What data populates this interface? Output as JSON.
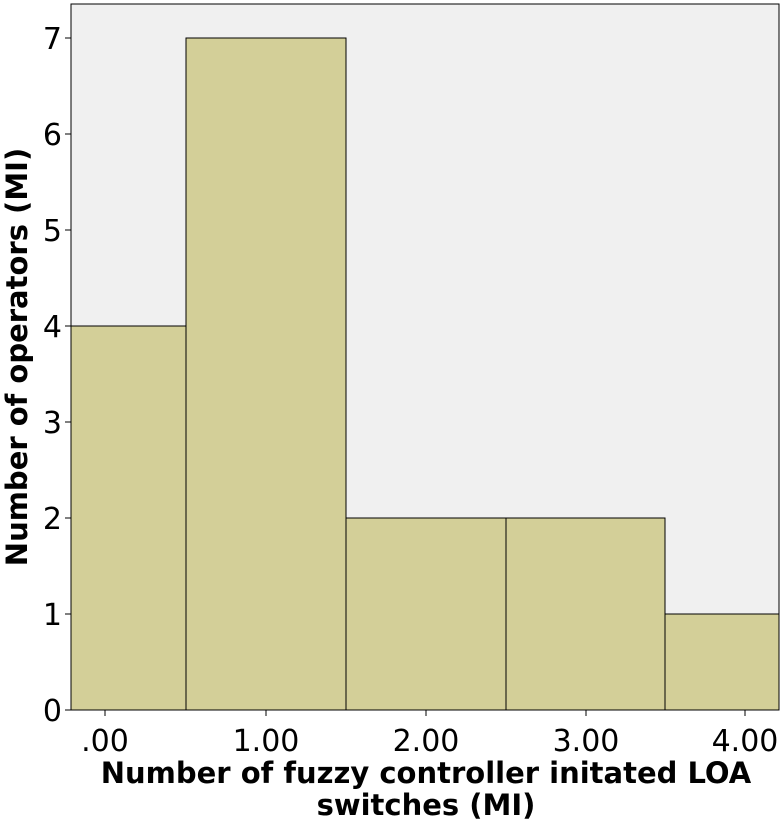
{
  "chart_data": {
    "type": "bar",
    "categories": [
      ".00",
      "1.00",
      "2.00",
      "3.00",
      "4.00"
    ],
    "values": [
      4,
      7,
      2,
      2,
      1
    ],
    "xlabel_lines": [
      "Number of fuzzy controller initated LOA",
      "switches (MI)"
    ],
    "ylabel": "Number of operators (MI)",
    "ylim": [
      0,
      7
    ],
    "yticks": [
      "0",
      "1",
      "2",
      "3",
      "4",
      "5",
      "6",
      "7"
    ],
    "grid": false,
    "colors": {
      "bar": "#d3cf98",
      "bar_edge": "#000000",
      "plot_background": "#f0f0f0"
    }
  }
}
